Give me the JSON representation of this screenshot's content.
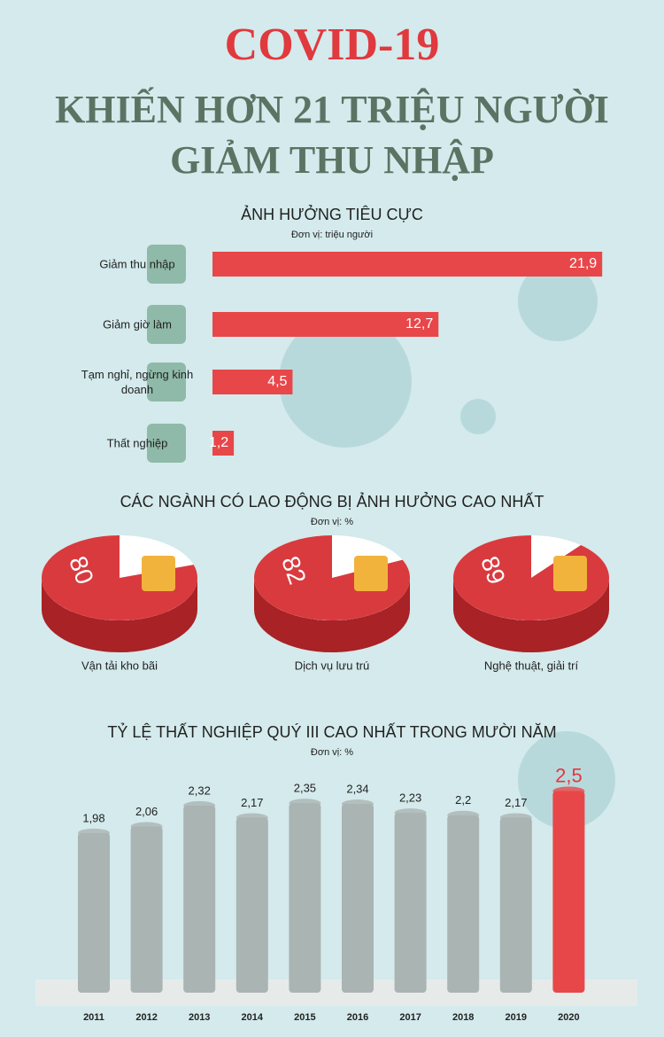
{
  "header": {
    "title": "COVID-19",
    "subtitle_lines": [
      "KHIẾN HƠN 21 TRIỆU NGƯỜI",
      "GIẢM THU NHẬP"
    ]
  },
  "chart_data": [
    {
      "type": "hbar",
      "title": "ẢNH HƯỞNG TIÊU CỰC",
      "subtitle": "Đơn vị: triệu người",
      "categories": [
        "Giảm thu nhập",
        "Giảm giờ làm",
        "Tạm nghỉ, ngừng kinh doanh",
        "Thất nghiệp"
      ],
      "values": [
        21.9,
        12.7,
        4.5,
        1.2
      ],
      "value_labels": [
        "21,9",
        "12,7",
        "4,5",
        "1,2"
      ],
      "color": "#e8474a"
    },
    {
      "type": "pie3d",
      "title": "CÁC NGÀNH CÓ LAO ĐỘNG BỊ ẢNH HƯỞNG CAO NHẤT",
      "subtitle": "Đơn vị: %",
      "categories": [
        "Vận tải kho bãi",
        "Dịch vụ lưu trú",
        "Nghệ thuật, giải trí"
      ],
      "values": [
        80,
        82,
        89
      ],
      "color": "#d93a3e"
    },
    {
      "type": "bar",
      "title": "TỶ LỆ THẤT NGHIỆP QUÝ III CAO NHẤT TRONG MƯỜI NĂM",
      "subtitle": "Đơn vị: %",
      "categories": [
        "2011",
        "2012",
        "2013",
        "2014",
        "2015",
        "2016",
        "2017",
        "2018",
        "2019",
        "2020"
      ],
      "values": [
        1.98,
        2.06,
        2.32,
        2.17,
        2.35,
        2.34,
        2.23,
        2.2,
        2.17,
        2.5
      ],
      "value_labels": [
        "1,98",
        "2,06",
        "2,32",
        "2,17",
        "2,35",
        "2,34",
        "2,23",
        "2,2",
        "2,17",
        "2,5"
      ],
      "colors": [
        "#aab4b3",
        "#aab4b3",
        "#aab4b3",
        "#aab4b3",
        "#aab4b3",
        "#aab4b3",
        "#aab4b3",
        "#aab4b3",
        "#aab4b3",
        "#e8474a"
      ]
    }
  ]
}
